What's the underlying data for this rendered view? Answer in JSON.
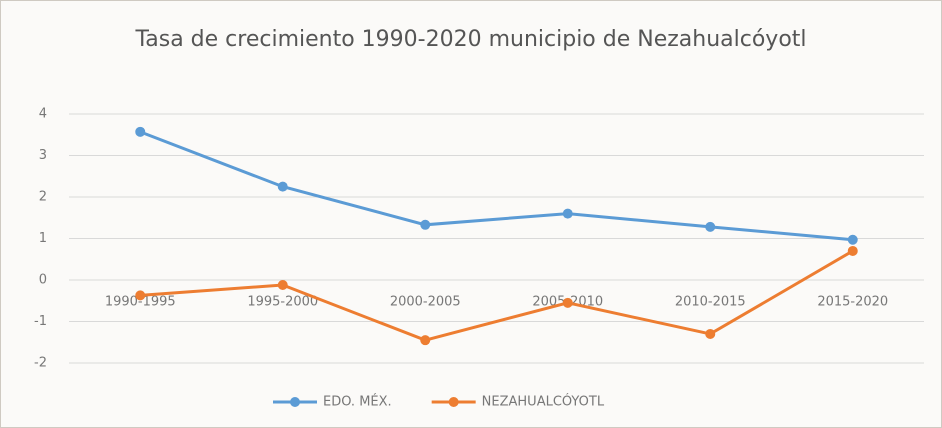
{
  "chart_data": {
    "type": "line",
    "title": "Tasa de crecimiento 1990-2020 municipio de Nezahualcóyotl",
    "categories": [
      "1990-1995",
      "1995-2000",
      "2000-2005",
      "2005-2010",
      "2010-2015",
      "2015-2020"
    ],
    "series": [
      {
        "name": "EDO. MÉX.",
        "color": "#5b9bd5",
        "values": [
          3.57,
          2.25,
          1.33,
          1.6,
          1.28,
          0.97
        ]
      },
      {
        "name": "NEZAHUALCÓYOTL",
        "color": "#ed7d31",
        "values": [
          -0.37,
          -0.12,
          -1.45,
          -0.55,
          -1.3,
          0.7
        ]
      }
    ],
    "ylim": [
      -2,
      4
    ],
    "yticks": [
      -2,
      -1,
      0,
      1,
      2,
      3,
      4
    ],
    "grid": true
  }
}
